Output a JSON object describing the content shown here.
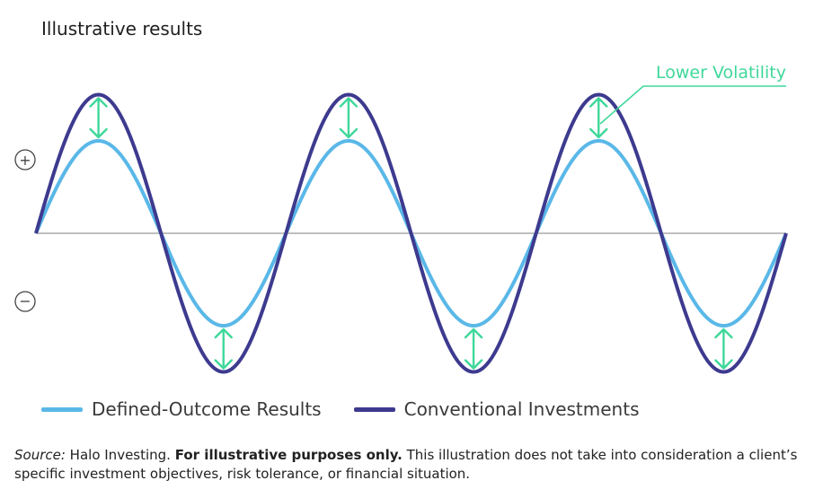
{
  "title": "Illustrative results",
  "chart_data": {
    "type": "line",
    "title": "Illustrative results",
    "series": [
      {
        "name": "Defined-Outcome Results",
        "amplitude": 1.0,
        "cycles": 3,
        "color": "#5ab8e8"
      },
      {
        "name": "Conventional Investments",
        "amplitude": 1.5,
        "cycles": 3,
        "color": "#3d3a8f"
      }
    ],
    "axis": {
      "plus_symbol": "+",
      "minus_symbol": "−"
    },
    "annotation": {
      "text": "Lower Volatility",
      "color": "#3ed89a"
    },
    "zero_line_color": "#aaaaaa",
    "grid": false,
    "legend_position": "bottom-left"
  },
  "footer": {
    "source_label": "Source:",
    "source_text": " Halo Investing. ",
    "bold_text": "For illustrative purposes only.",
    "rest_text": " This illustration does not take into consideration a client’s specific investment objectives, risk tolerance, or financial situation."
  }
}
